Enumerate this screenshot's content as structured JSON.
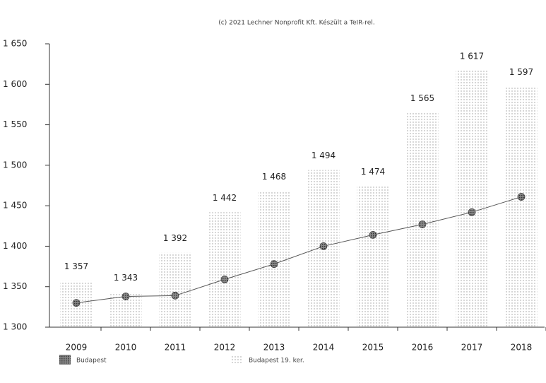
{
  "chart_data": {
    "type": "bar-line",
    "title": "(c) 2021 Lechner Nonprofit Kft. Készült a TeIR-rel.",
    "categories": [
      "2009",
      "2010",
      "2011",
      "2012",
      "2013",
      "2014",
      "2015",
      "2016",
      "2017",
      "2018"
    ],
    "series": [
      {
        "name": "Budapest",
        "type": "line",
        "color": "#555555",
        "values": [
          1330,
          1338,
          1339,
          1359,
          1378,
          1400,
          1414,
          1427,
          1442,
          1461
        ]
      },
      {
        "name": "Budapest 19. ker.",
        "type": "bar",
        "color": "#9a9a9a",
        "values": [
          1357,
          1343,
          1392,
          1442,
          1468,
          1494,
          1474,
          1565,
          1617,
          1597
        ],
        "value_labels": [
          "1 357",
          "1 343",
          "1 392",
          "1 442",
          "1 468",
          "1 494",
          "1 474",
          "1 565",
          "1 617",
          "1 597"
        ]
      }
    ],
    "ylim": [
      1300,
      1650
    ],
    "yticks": [
      {
        "value": 1300,
        "label": "1 300"
      },
      {
        "value": 1350,
        "label": "1 350"
      },
      {
        "value": 1400,
        "label": "1 400"
      },
      {
        "value": 1450,
        "label": "1 450"
      },
      {
        "value": 1500,
        "label": "1 500"
      },
      {
        "value": 1550,
        "label": "1 550"
      },
      {
        "value": 1600,
        "label": "1 600"
      },
      {
        "value": 1650,
        "label": "1 650"
      }
    ],
    "grid": false
  }
}
